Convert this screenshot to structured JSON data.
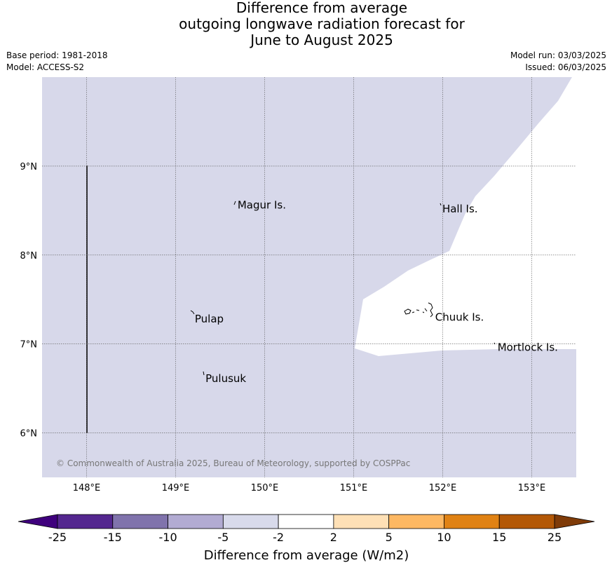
{
  "title": {
    "line1": "Difference from average",
    "line2": "outgoing longwave radiation forecast for",
    "line3": "June to August 2025"
  },
  "meta": {
    "base_period": "Base period: 1981-2018",
    "model": "Model: ACCESS-S2",
    "model_run": "Model run: 03/03/2025",
    "issued": "Issued: 06/03/2025"
  },
  "map": {
    "lon_ticks": [
      148,
      149,
      150,
      151,
      152,
      153
    ],
    "lon_labels": [
      "148°E",
      "149°E",
      "150°E",
      "151°E",
      "152°E",
      "153°E"
    ],
    "lat_ticks": [
      9,
      8,
      7,
      6
    ],
    "lat_labels": [
      "9°N",
      "8°N",
      "7°N",
      "6°N"
    ],
    "lon_range": [
      147.5,
      153.5
    ],
    "lat_range": [
      5.5,
      10.0
    ],
    "colors": {
      "background_field": "#d7d8ea",
      "no_anomaly": "#ffffff",
      "gridline": "#555555"
    },
    "places": [
      {
        "name": "Magur Is.",
        "lon": 149.68,
        "lat": 8.56
      },
      {
        "name": "Hall Is.",
        "lon": 151.98,
        "lat": 8.52
      },
      {
        "name": "Pulap",
        "lon": 149.2,
        "lat": 7.28
      },
      {
        "name": "Chuuk Is.",
        "lon": 151.9,
        "lat": 7.3
      },
      {
        "name": "Mortlock Is.",
        "lon": 152.6,
        "lat": 6.96
      },
      {
        "name": "Pulusuk",
        "lon": 149.32,
        "lat": 6.61
      }
    ],
    "copyright": "© Commonwealth of Australia 2025, Bureau of Meteorology, supported by COSPPac"
  },
  "colorbar": {
    "bins": [
      {
        "color": "#3f007d"
      },
      {
        "color": "#54278f"
      },
      {
        "color": "#8073ac"
      },
      {
        "color": "#b2abd2"
      },
      {
        "color": "#d8daeb"
      },
      {
        "color": "#ffffff"
      },
      {
        "color": "#fee0b6"
      },
      {
        "color": "#fdb863"
      },
      {
        "color": "#e08214"
      },
      {
        "color": "#b35806"
      },
      {
        "color": "#7f3b08"
      }
    ],
    "tick_labels": [
      "-25",
      "-15",
      "-10",
      "-5",
      "-2",
      "2",
      "5",
      "10",
      "15",
      "25"
    ],
    "label": "Difference from average (W/m2)"
  }
}
